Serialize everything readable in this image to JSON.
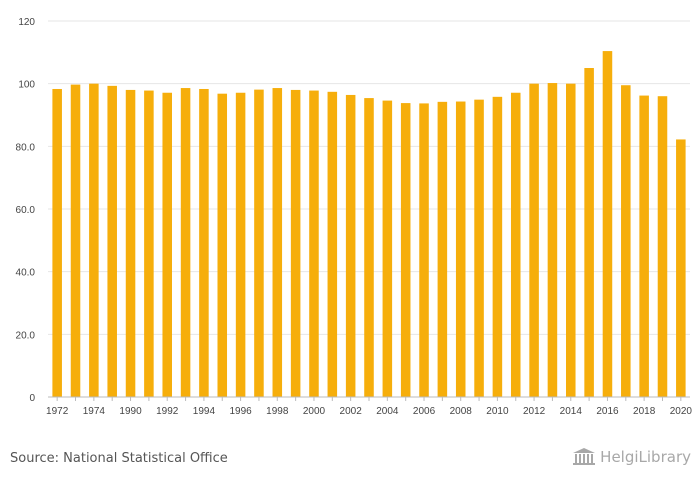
{
  "chart_data": {
    "type": "bar",
    "categories": [
      "1972",
      "1973",
      "1974",
      "1975",
      "1990",
      "1991",
      "1992",
      "1993",
      "1994",
      "1995",
      "1996",
      "1997",
      "1998",
      "1999",
      "2000",
      "2001",
      "2002",
      "2003",
      "2004",
      "2005",
      "2006",
      "2007",
      "2008",
      "2009",
      "2010",
      "2011",
      "2012",
      "2013",
      "2014",
      "2015",
      "2016",
      "2017",
      "2018",
      "2019",
      "2020"
    ],
    "tick_labels": [
      "1972",
      "",
      "1974",
      "",
      "1990",
      "",
      "1992",
      "",
      "1994",
      "",
      "1996",
      "",
      "1998",
      "",
      "2000",
      "",
      "2002",
      "",
      "2004",
      "",
      "2006",
      "",
      "2008",
      "",
      "2010",
      "",
      "2012",
      "",
      "2014",
      "",
      "2016",
      "",
      "2018",
      "",
      "2020"
    ],
    "values": [
      98.3,
      99.7,
      100.0,
      99.3,
      98.0,
      97.8,
      97.1,
      98.6,
      98.3,
      96.8,
      97.1,
      98.1,
      98.6,
      98.0,
      97.8,
      97.4,
      96.4,
      95.4,
      94.6,
      93.8,
      93.7,
      94.2,
      94.3,
      94.9,
      95.8,
      97.1,
      100.0,
      100.2,
      100.0,
      105.0,
      110.4,
      99.5,
      96.2,
      96.0,
      82.2
    ],
    "ylim": [
      0,
      120
    ],
    "yticks": [
      0,
      20,
      40,
      60,
      80,
      100,
      120
    ],
    "ytick_labels": [
      "0",
      "20.0",
      "40.0",
      "60.0",
      "80.0",
      "100",
      "120"
    ],
    "bar_color": "#f6ae0b",
    "grid": true,
    "title": "",
    "xlabel": "",
    "ylabel": ""
  },
  "footer": {
    "source": "Source: National Statistical Office",
    "logo_text": "HelgiLibrary",
    "logo_icon": "library-building-icon",
    "logo_color": "#a8a8a8"
  }
}
